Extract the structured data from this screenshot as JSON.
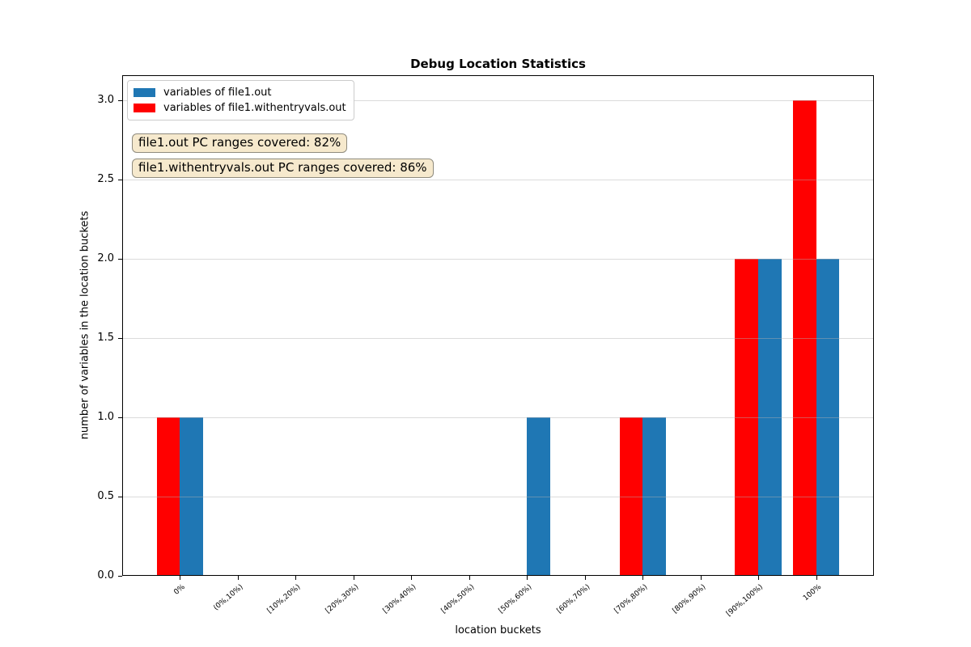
{
  "title": "Debug Location Statistics",
  "xlabel": "location buckets",
  "ylabel": "number of variables in the location buckets",
  "legend": {
    "items": [
      {
        "label": "variables of file1.out",
        "color": "#1f77b4"
      },
      {
        "label": "variables of file1.withentryvals.out",
        "color": "#ff0000"
      }
    ]
  },
  "annotations": [
    {
      "text": "file1.out PC ranges covered: 82%"
    },
    {
      "text": "file1.withentryvals.out PC ranges covered: 86%"
    }
  ],
  "annotation_style": {
    "bg": "#f6e9cd",
    "border": "#8f8b7e"
  },
  "colors": {
    "blue_series": "#1f77b4",
    "red_series": "#ff0000",
    "grid": "#b0b0b0"
  },
  "chart_data": {
    "type": "bar",
    "title": "Debug Location Statistics",
    "xlabel": "location buckets",
    "ylabel": "number of variables in the location buckets",
    "categories": [
      "0%",
      "(0%,10%)",
      "[10%,20%)",
      "[20%,30%)",
      "[30%,40%)",
      "[40%,50%)",
      "[50%,60%)",
      "[60%,70%)",
      "[70%,80%)",
      "[80%,90%)",
      "[90%,100%)",
      "100%"
    ],
    "series": [
      {
        "name": "variables of file1.withentryvals.out",
        "color": "#ff0000",
        "side": "left",
        "values": [
          1,
          0,
          0,
          0,
          0,
          0,
          0,
          0,
          1,
          0,
          2,
          3
        ]
      },
      {
        "name": "variables of file1.out",
        "color": "#1f77b4",
        "side": "right",
        "values": [
          1,
          0,
          0,
          0,
          0,
          0,
          1,
          0,
          1,
          0,
          2,
          2
        ]
      }
    ],
    "yticks": [
      0.0,
      0.5,
      1.0,
      1.5,
      2.0,
      2.5,
      3.0
    ],
    "ylim": [
      0,
      3.16
    ],
    "grid": "horizontal",
    "legend_position": "upper left"
  }
}
